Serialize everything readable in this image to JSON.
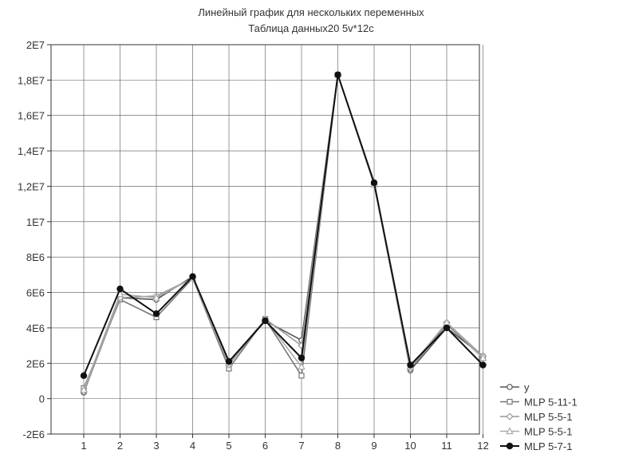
{
  "chart_data": {
    "type": "line",
    "title": "Линейный график для нескольких переменных",
    "subtitle": "Таблица данных20 5v*12c",
    "xlabel": "",
    "ylabel": "",
    "categories": [
      "1",
      "2",
      "3",
      "4",
      "5",
      "6",
      "7",
      "8",
      "9",
      "10",
      "11",
      "12"
    ],
    "y_ticks": [
      "-2E6",
      "0",
      "2E6",
      "4E6",
      "6E6",
      "8E6",
      "1E7",
      "1,2E7",
      "1,4E7",
      "1,6E7",
      "1,8E7",
      "2E7"
    ],
    "ylim": [
      -2000000,
      20000000
    ],
    "grid": true,
    "legend_position": "bottom-right",
    "series": [
      {
        "name": "y",
        "marker": "circle-open",
        "color": "#555555",
        "values": [
          350000,
          5700000,
          5600000,
          6900000,
          2000000,
          4400000,
          3300000,
          18300000,
          12200000,
          1600000,
          4000000,
          2400000
        ]
      },
      {
        "name": "MLP 5-11-1",
        "marker": "square-open",
        "color": "#777777",
        "values": [
          600000,
          5600000,
          4600000,
          6800000,
          1700000,
          4500000,
          1300000,
          18300000,
          12100000,
          1700000,
          4200000,
          2300000
        ]
      },
      {
        "name": "MLP 5-5-1",
        "marker": "diamond-open",
        "color": "#999999",
        "values": [
          400000,
          5700000,
          5800000,
          6800000,
          1900000,
          4500000,
          3000000,
          18300000,
          12100000,
          1700000,
          4300000,
          2400000
        ]
      },
      {
        "name": "MLP 5-5-1",
        "marker": "triangle-open",
        "color": "#aaaaaa",
        "values": [
          500000,
          5900000,
          5700000,
          6800000,
          2000000,
          4500000,
          1800000,
          18300000,
          12100000,
          1800000,
          4300000,
          2300000
        ]
      },
      {
        "name": "MLP 5-7-1",
        "marker": "circle-filled",
        "color": "#111111",
        "values": [
          1300000,
          6200000,
          4800000,
          6900000,
          2100000,
          4400000,
          2300000,
          18300000,
          12200000,
          1900000,
          4000000,
          1900000
        ]
      }
    ]
  }
}
